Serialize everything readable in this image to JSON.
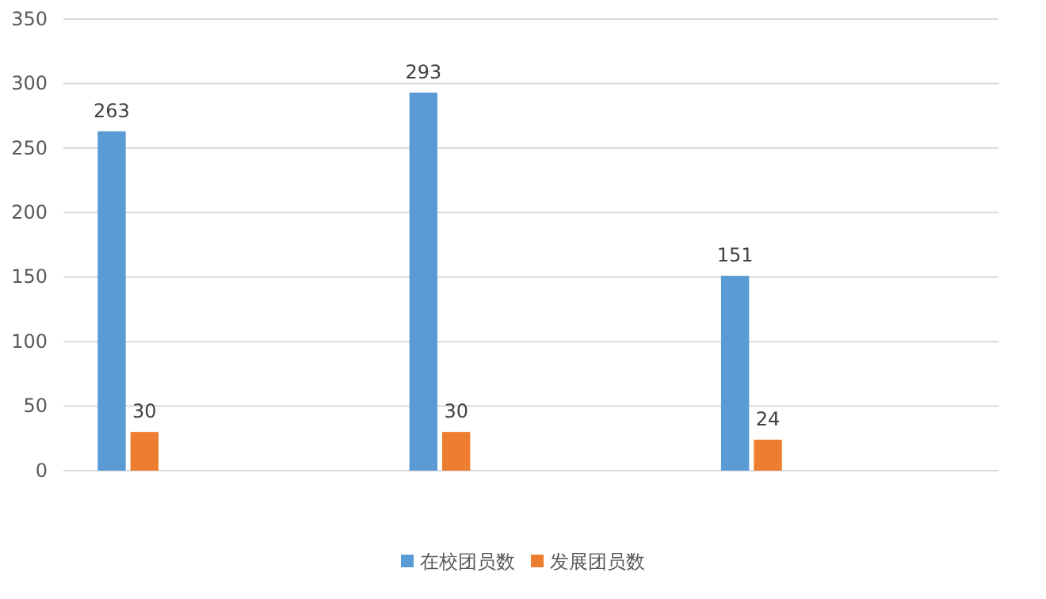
{
  "chart_data": {
    "type": "bar",
    "categories": [
      null,
      null,
      null
    ],
    "series": [
      {
        "name": "在校团员数",
        "color": "#5b9bd5",
        "values": [
          263,
          293,
          151
        ]
      },
      {
        "name": "发展团员数",
        "color": "#ed7d31",
        "values": [
          30,
          30,
          24
        ]
      }
    ],
    "ylim": [
      0,
      350
    ],
    "yticks": [
      0,
      50,
      100,
      150,
      200,
      250,
      300,
      350
    ],
    "grid": "y",
    "legend": "bottom",
    "data_labels": true
  }
}
